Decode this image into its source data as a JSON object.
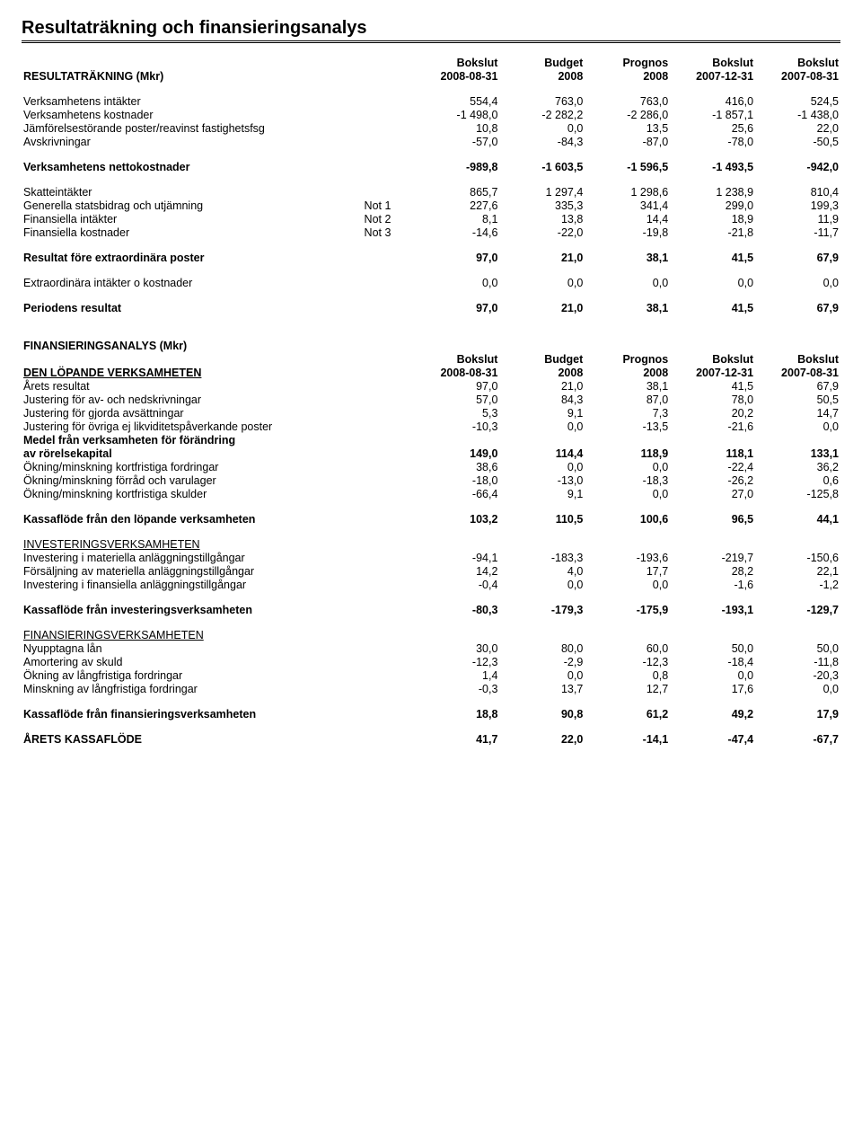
{
  "page_title": "Resultaträkning och finansieringsanalys",
  "columns": {
    "c1a": "Bokslut",
    "c1b": "2008-08-31",
    "c2a": "Budget",
    "c2b": "2008",
    "c3a": "Prognos",
    "c3b": "2008",
    "c4a": "Bokslut",
    "c4b": "2007-12-31",
    "c5a": "Bokslut",
    "c5b": "2007-08-31"
  },
  "sec1": {
    "heading": "RESULTATRÄKNING (Mkr)",
    "r1": {
      "l": "Verksamhetens intäkter",
      "v": [
        "554,4",
        "763,0",
        "763,0",
        "416,0",
        "524,5"
      ]
    },
    "r2": {
      "l": "Verksamhetens kostnader",
      "v": [
        "-1 498,0",
        "-2 282,2",
        "-2 286,0",
        "-1 857,1",
        "-1 438,0"
      ]
    },
    "r3": {
      "l": "Jämförelsestörande poster/reavinst fastighetsfsg",
      "v": [
        "10,8",
        "0,0",
        "13,5",
        "25,6",
        "22,0"
      ]
    },
    "r4": {
      "l": "Avskrivningar",
      "v": [
        "-57,0",
        "-84,3",
        "-87,0",
        "-78,0",
        "-50,5"
      ]
    },
    "r5": {
      "l": "Verksamhetens nettokostnader",
      "v": [
        "-989,8",
        "-1 603,5",
        "-1 596,5",
        "-1 493,5",
        "-942,0"
      ]
    },
    "r6": {
      "l": "Skatteintäkter",
      "v": [
        "865,7",
        "1 297,4",
        "1 298,6",
        "1 238,9",
        "810,4"
      ]
    },
    "r7": {
      "l": "Generella statsbidrag och utjämning",
      "n": "Not 1",
      "v": [
        "227,6",
        "335,3",
        "341,4",
        "299,0",
        "199,3"
      ]
    },
    "r8": {
      "l": "Finansiella intäkter",
      "n": "Not 2",
      "v": [
        "8,1",
        "13,8",
        "14,4",
        "18,9",
        "11,9"
      ]
    },
    "r9": {
      "l": "Finansiella kostnader",
      "n": "Not 3",
      "v": [
        "-14,6",
        "-22,0",
        "-19,8",
        "-21,8",
        "-11,7"
      ]
    },
    "r10": {
      "l": "Resultat före extraordinära poster",
      "v": [
        "97,0",
        "21,0",
        "38,1",
        "41,5",
        "67,9"
      ]
    },
    "r11": {
      "l": "Extraordinära intäkter o kostnader",
      "v": [
        "0,0",
        "0,0",
        "0,0",
        "0,0",
        "0,0"
      ]
    },
    "r12": {
      "l": "Periodens resultat",
      "v": [
        "97,0",
        "21,0",
        "38,1",
        "41,5",
        "67,9"
      ]
    }
  },
  "sec2": {
    "heading": "FINANSIERINGSANALYS (Mkr)",
    "sub1": "DEN LÖPANDE VERKSAMHETEN",
    "r1": {
      "l": "Årets resultat",
      "v": [
        "97,0",
        "21,0",
        "38,1",
        "41,5",
        "67,9"
      ]
    },
    "r2": {
      "l": "Justering för av- och nedskrivningar",
      "v": [
        "57,0",
        "84,3",
        "87,0",
        "78,0",
        "50,5"
      ]
    },
    "r3": {
      "l": "Justering för gjorda avsättningar",
      "v": [
        "5,3",
        "9,1",
        "7,3",
        "20,2",
        "14,7"
      ]
    },
    "r4": {
      "l": "Justering för övriga ej likviditetspåverkande poster",
      "v": [
        "-10,3",
        "0,0",
        "-13,5",
        "-21,6",
        "0,0"
      ]
    },
    "r5a": {
      "l": "Medel från verksamheten för förändring"
    },
    "r5b": {
      "l": "av rörelsekapital",
      "v": [
        "149,0",
        "114,4",
        "118,9",
        "118,1",
        "133,1"
      ]
    },
    "r6": {
      "l": "Ökning/minskning kortfristiga fordringar",
      "v": [
        "38,6",
        "0,0",
        "0,0",
        "-22,4",
        "36,2"
      ]
    },
    "r7": {
      "l": "Ökning/minskning förråd och varulager",
      "v": [
        "-18,0",
        "-13,0",
        "-18,3",
        "-26,2",
        "0,6"
      ]
    },
    "r8": {
      "l": "Ökning/minskning kortfristiga skulder",
      "v": [
        "-66,4",
        "9,1",
        "0,0",
        "27,0",
        "-125,8"
      ]
    },
    "r9": {
      "l": "Kassaflöde från den löpande verksamheten",
      "v": [
        "103,2",
        "110,5",
        "100,6",
        "96,5",
        "44,1"
      ]
    },
    "sub2": "INVESTERINGSVERKSAMHETEN",
    "r10": {
      "l": "Investering i materiella anläggningstillgångar",
      "v": [
        "-94,1",
        "-183,3",
        "-193,6",
        "-219,7",
        "-150,6"
      ]
    },
    "r11": {
      "l": "Försäljning av materiella anläggningstillgångar",
      "v": [
        "14,2",
        "4,0",
        "17,7",
        "28,2",
        "22,1"
      ]
    },
    "r12": {
      "l": "Investering i finansiella anläggningstillgångar",
      "v": [
        "-0,4",
        "0,0",
        "0,0",
        "-1,6",
        "-1,2"
      ]
    },
    "r13": {
      "l": "Kassaflöde från investeringsverksamheten",
      "v": [
        "-80,3",
        "-179,3",
        "-175,9",
        "-193,1",
        "-129,7"
      ]
    },
    "sub3": "FINANSIERINGSVERKSAMHETEN",
    "r14": {
      "l": "Nyupptagna lån",
      "v": [
        "30,0",
        "80,0",
        "60,0",
        "50,0",
        "50,0"
      ]
    },
    "r15": {
      "l": "Amortering av skuld",
      "v": [
        "-12,3",
        "-2,9",
        "-12,3",
        "-18,4",
        "-11,8"
      ]
    },
    "r16": {
      "l": "Ökning av långfristiga fordringar",
      "v": [
        "1,4",
        "0,0",
        "0,8",
        "0,0",
        "-20,3"
      ]
    },
    "r17": {
      "l": "Minskning av långfristiga fordringar",
      "v": [
        "-0,3",
        "13,7",
        "12,7",
        "17,6",
        "0,0"
      ]
    },
    "r18": {
      "l": "Kassaflöde från finansieringsverksamheten",
      "v": [
        "18,8",
        "90,8",
        "61,2",
        "49,2",
        "17,9"
      ]
    },
    "r19": {
      "l": "ÅRETS KASSAFLÖDE",
      "v": [
        "41,7",
        "22,0",
        "-14,1",
        "-47,4",
        "-67,7"
      ]
    }
  }
}
